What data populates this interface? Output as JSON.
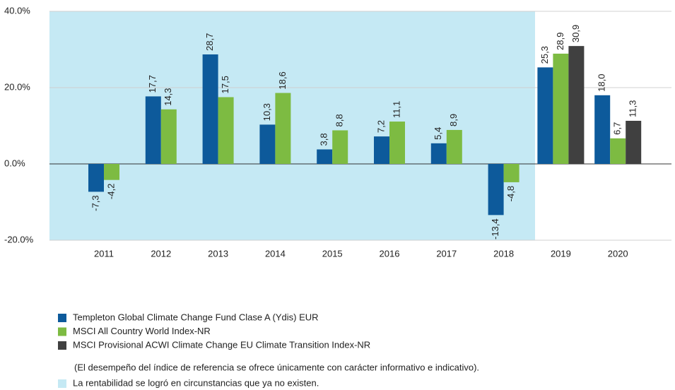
{
  "chart_data": {
    "type": "bar",
    "categories": [
      "2011",
      "2012",
      "2013",
      "2014",
      "2015",
      "2016",
      "2017",
      "2018",
      "2019",
      "2020"
    ],
    "series": [
      {
        "name": "Templeton Global Climate Change Fund Clase A (Ydis) EUR",
        "color": "#0d5a9b",
        "values": [
          -7.3,
          17.7,
          28.7,
          10.3,
          3.8,
          7.2,
          5.4,
          -13.4,
          25.3,
          18.0
        ],
        "value_labels": [
          "-7,3",
          "17,7",
          "28,7",
          "10,3",
          "3,8",
          "7,2",
          "5,4",
          "-13,4",
          "25,3",
          "18,0"
        ]
      },
      {
        "name": "MSCI All Country World Index-NR",
        "color": "#7dbb42",
        "values": [
          -4.2,
          14.3,
          17.5,
          18.6,
          8.8,
          11.1,
          8.9,
          -4.8,
          28.9,
          6.7
        ],
        "value_labels": [
          "-4,2",
          "14,3",
          "17,5",
          "18,6",
          "8,8",
          "11,1",
          "8,9",
          "-4,8",
          "28,9",
          "6,7"
        ]
      },
      {
        "name": "MSCI Provisional ACWI Climate Change EU Climate Transition Index-NR",
        "color": "#404040",
        "values": [
          null,
          null,
          null,
          null,
          null,
          null,
          null,
          null,
          30.9,
          11.3
        ],
        "value_labels": [
          null,
          null,
          null,
          null,
          null,
          null,
          null,
          null,
          "30,9",
          "11,3"
        ]
      }
    ],
    "ylim": [
      -20,
      40
    ],
    "yticks": [
      {
        "value": -20,
        "label": "-20.0%"
      },
      {
        "value": 0,
        "label": "0.0%"
      },
      {
        "value": 20,
        "label": "20.0%"
      },
      {
        "value": 40,
        "label": "40.0%"
      }
    ],
    "grid": true,
    "note": "(El desempeño del índice de referencia se ofrece únicamente con carácter informativo e indicativo).",
    "shaded": {
      "from": "2011",
      "to": "2018",
      "color": "#c5e9f4",
      "label": "La rentabilidad se logró en circunstancias que ya no existen."
    }
  }
}
